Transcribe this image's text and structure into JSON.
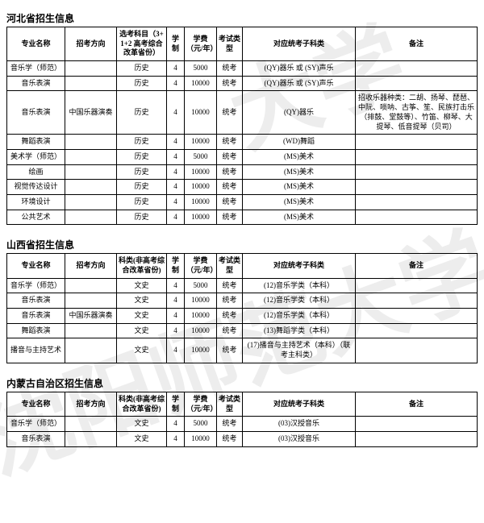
{
  "sections": [
    {
      "title": "河北省招生信息",
      "headers": [
        "专业名称",
        "招考方向",
        "选考科目（3+1+2 高考综合改革省份）",
        "学制",
        "学费（元/年）",
        "考试类型",
        "对应统考子科类",
        "备注"
      ],
      "rows": [
        [
          "音乐学（师范）",
          "",
          "历史",
          "4",
          "5000",
          "统考",
          "(QY)器乐 或 (SY)声乐",
          ""
        ],
        [
          "音乐表演",
          "",
          "历史",
          "4",
          "10000",
          "统考",
          "(QY)器乐 或 (SY)声乐",
          ""
        ],
        [
          "音乐表演",
          "中国乐器演奏",
          "历史",
          "4",
          "10000",
          "统考",
          "(QY)器乐",
          "招收乐器种类：二胡、扬琴、琵琶、中阮、唢呐、古筝、笙、民族打击乐（排鼓、堂鼓等）、竹笛、柳琴、大提琴、低音提琴（贝司）"
        ],
        [
          "舞蹈表演",
          "",
          "历史",
          "4",
          "10000",
          "统考",
          "(WD)舞蹈",
          ""
        ],
        [
          "美术学（师范）",
          "",
          "历史",
          "4",
          "5000",
          "统考",
          "(MS)美术",
          ""
        ],
        [
          "绘画",
          "",
          "历史",
          "4",
          "10000",
          "统考",
          "(MS)美术",
          ""
        ],
        [
          "视觉传达设计",
          "",
          "历史",
          "4",
          "10000",
          "统考",
          "(MS)美术",
          ""
        ],
        [
          "环境设计",
          "",
          "历史",
          "4",
          "10000",
          "统考",
          "(MS)美术",
          ""
        ],
        [
          "公共艺术",
          "",
          "历史",
          "4",
          "10000",
          "统考",
          "(MS)美术",
          ""
        ]
      ]
    },
    {
      "title": "山西省招生信息",
      "headers": [
        "专业名称",
        "招考方向",
        "科类(非高考综合改革省份)",
        "学制",
        "学费（元/年）",
        "考试类型",
        "对应统考子科类",
        "备注"
      ],
      "rows": [
        [
          "音乐学（师范）",
          "",
          "文史",
          "4",
          "5000",
          "统考",
          "(12)音乐学类（本科）",
          ""
        ],
        [
          "音乐表演",
          "",
          "文史",
          "4",
          "10000",
          "统考",
          "(12)音乐学类（本科）",
          ""
        ],
        [
          "音乐表演",
          "中国乐器演奏",
          "文史",
          "4",
          "10000",
          "统考",
          "(12)音乐学类（本科）",
          ""
        ],
        [
          "舞蹈表演",
          "",
          "文史",
          "4",
          "10000",
          "统考",
          "(13)舞蹈学类（本科）",
          ""
        ],
        [
          "播音与主持艺术",
          "",
          "文史",
          "4",
          "10000",
          "统考",
          "(17)播音与主持艺术（本科）（联考主科类）",
          ""
        ]
      ]
    },
    {
      "title": "内蒙古自治区招生信息",
      "headers": [
        "专业名称",
        "招考方向",
        "科类(非高考综合改革省份)",
        "学制",
        "学费（元/年）",
        "考试类型",
        "对应统考子科类",
        "备注"
      ],
      "rows": [
        [
          "音乐学（师范）",
          "",
          "文史",
          "4",
          "5000",
          "统考",
          "(03)汉授音乐",
          ""
        ],
        [
          "音乐表演",
          "",
          "文史",
          "4",
          "10000",
          "统考",
          "(03)汉授音乐",
          ""
        ]
      ]
    }
  ]
}
